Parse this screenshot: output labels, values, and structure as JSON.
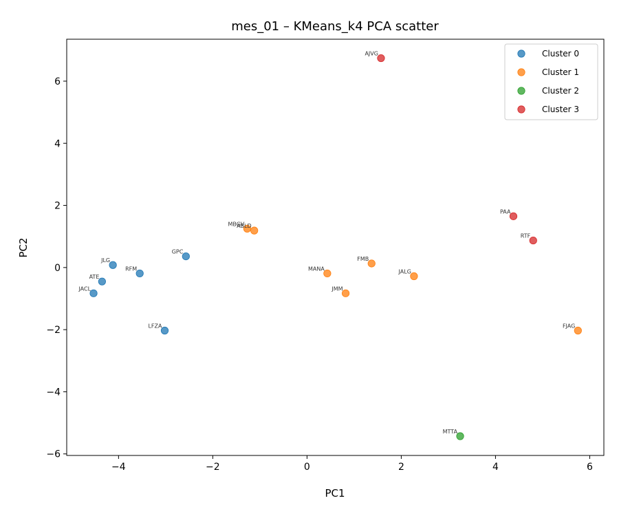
{
  "chart_data": {
    "type": "scatter",
    "title": "mes_01 – KMeans_k4 PCA scatter",
    "xlabel": "PC1",
    "ylabel": "PC2",
    "xlim": [
      -5.1,
      6.3
    ],
    "ylim": [
      -6.05,
      7.35
    ],
    "xticks": [
      -4,
      -2,
      0,
      2,
      4,
      6
    ],
    "yticks": [
      -6,
      -4,
      -2,
      0,
      2,
      4,
      6
    ],
    "xtick_labels": [
      "−4",
      "−2",
      "0",
      "2",
      "4",
      "6"
    ],
    "ytick_labels": [
      "−6",
      "−4",
      "−2",
      "0",
      "2",
      "4",
      "6"
    ],
    "grid": false,
    "legend_position": "top-right",
    "series": [
      {
        "name": "Cluster 0",
        "color": "#1f77b4",
        "points": [
          {
            "label": "JLG",
            "x": -4.12,
            "y": 0.08
          },
          {
            "label": "ATE",
            "x": -4.35,
            "y": -0.45
          },
          {
            "label": "JACL",
            "x": -4.53,
            "y": -0.83
          },
          {
            "label": "RFM",
            "x": -3.55,
            "y": -0.19
          },
          {
            "label": "GPC",
            "x": -2.57,
            "y": 0.36
          },
          {
            "label": "LFZA",
            "x": -3.02,
            "y": -2.03
          }
        ]
      },
      {
        "name": "Cluster 1",
        "color": "#ff7f0e",
        "points": [
          {
            "label": "MBGV",
            "x": -1.27,
            "y": 1.25
          },
          {
            "label": "ABLD",
            "x": -1.12,
            "y": 1.19
          },
          {
            "label": "MANA",
            "x": 0.43,
            "y": -0.19
          },
          {
            "label": "JMM",
            "x": 0.82,
            "y": -0.83
          },
          {
            "label": "FMB",
            "x": 1.37,
            "y": 0.13
          },
          {
            "label": "JALG",
            "x": 2.27,
            "y": -0.28
          },
          {
            "label": "FJAG",
            "x": 5.75,
            "y": -2.03
          }
        ]
      },
      {
        "name": "Cluster 2",
        "color": "#2ca02c",
        "points": [
          {
            "label": "MTTA",
            "x": 3.25,
            "y": -5.43
          }
        ]
      },
      {
        "name": "Cluster 3",
        "color": "#d62728",
        "points": [
          {
            "label": "AJVG",
            "x": 1.57,
            "y": 6.74
          },
          {
            "label": "PAA",
            "x": 4.38,
            "y": 1.65
          },
          {
            "label": "RTF",
            "x": 4.8,
            "y": 0.87
          }
        ]
      }
    ]
  }
}
